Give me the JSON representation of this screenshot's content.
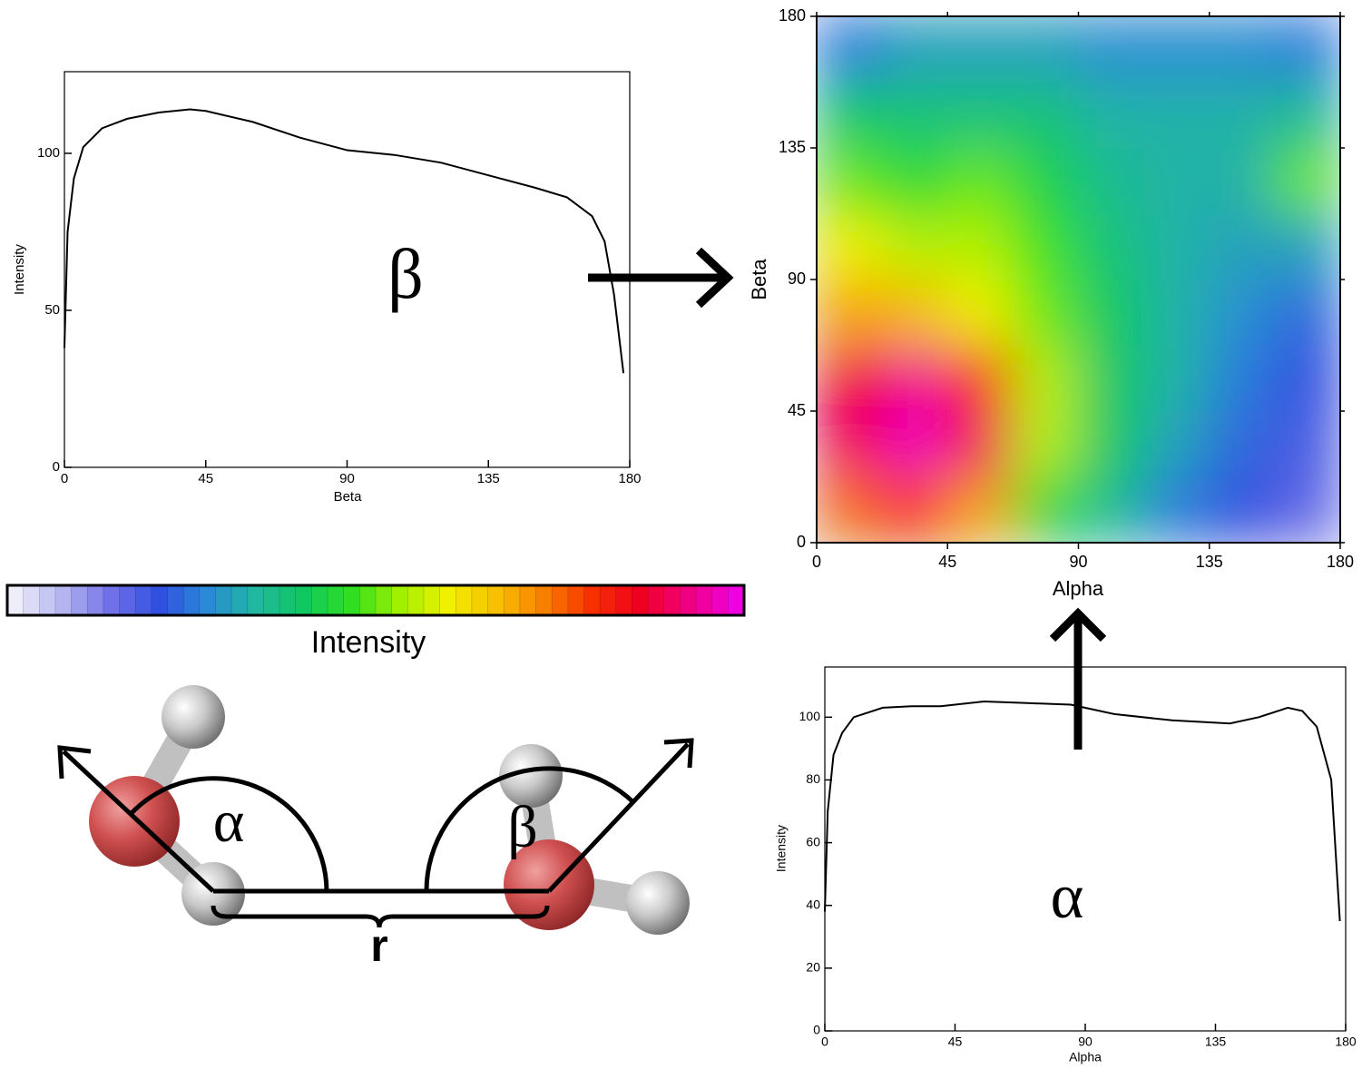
{
  "chart_data": [
    {
      "type": "line",
      "annotation": "β",
      "xlabel": "Beta",
      "ylabel": "Intensity",
      "x": [
        0,
        1,
        3,
        6,
        12,
        20,
        30,
        40,
        45,
        60,
        75,
        90,
        105,
        120,
        135,
        150,
        160,
        168,
        172,
        175,
        178
      ],
      "values": [
        38,
        75,
        92,
        102,
        108,
        111,
        113,
        114,
        113.5,
        110,
        105,
        101,
        99.5,
        97,
        93,
        89,
        86,
        80,
        72,
        55,
        30
      ],
      "color": "#000000",
      "xlim": [
        0,
        180
      ],
      "ylim": [
        0,
        126
      ],
      "xticks": [
        0,
        45,
        90,
        135,
        180
      ],
      "yticks": [
        0,
        50,
        100
      ]
    },
    {
      "type": "heatmap",
      "xlabel": "Alpha",
      "ylabel": "Beta",
      "xlim": [
        0,
        180
      ],
      "ylim": [
        0,
        180
      ],
      "xticks": [
        0,
        45,
        90,
        135,
        180
      ],
      "yticks": [
        0,
        45,
        90,
        135,
        180
      ],
      "zlim": [
        0,
        40
      ],
      "z": [
        [
          30,
          32,
          28,
          18,
          14,
          10,
          8,
          6
        ],
        [
          36,
          39,
          36,
          22,
          16,
          12,
          9,
          7
        ],
        [
          35,
          38,
          32,
          22,
          16,
          13,
          10,
          8
        ],
        [
          28,
          27,
          24,
          20,
          16,
          13,
          11,
          9
        ],
        [
          24,
          22,
          22,
          19,
          15,
          13,
          12,
          12
        ],
        [
          20,
          18,
          20,
          17,
          14,
          13,
          13,
          20
        ],
        [
          16,
          15,
          15,
          15,
          13,
          13,
          13,
          14
        ],
        [
          10,
          12,
          12,
          12,
          11,
          11,
          11,
          10
        ]
      ],
      "colorbar_label": "Intensity",
      "colors": [
        "#eeeefa",
        "#b4b4f0",
        "#7070e8",
        "#3050e0",
        "#2a8ad8",
        "#20b8a0",
        "#10c860",
        "#30e020",
        "#a0f000",
        "#f0f000",
        "#f8c000",
        "#f88000",
        "#f83000",
        "#f00020",
        "#f00080",
        "#f000e0"
      ]
    },
    {
      "type": "line",
      "annotation": "α",
      "xlabel": "Alpha",
      "ylabel": "Intensity",
      "x": [
        0,
        1,
        3,
        6,
        10,
        20,
        30,
        40,
        55,
        70,
        85,
        100,
        120,
        140,
        150,
        160,
        165,
        170,
        175,
        178
      ],
      "values": [
        38,
        70,
        88,
        95,
        100,
        103,
        103.5,
        103.5,
        105,
        104.5,
        104,
        101,
        99,
        98,
        100,
        103,
        102,
        97,
        80,
        35
      ],
      "color": "#000000",
      "xlim": [
        0,
        180
      ],
      "ylim": [
        0,
        116
      ],
      "xticks": [
        0,
        45,
        90,
        135,
        180
      ],
      "yticks": [
        0,
        20,
        40,
        60,
        80,
        100
      ]
    }
  ],
  "diagram": {
    "alpha": "α",
    "beta": "β",
    "r": "r"
  }
}
